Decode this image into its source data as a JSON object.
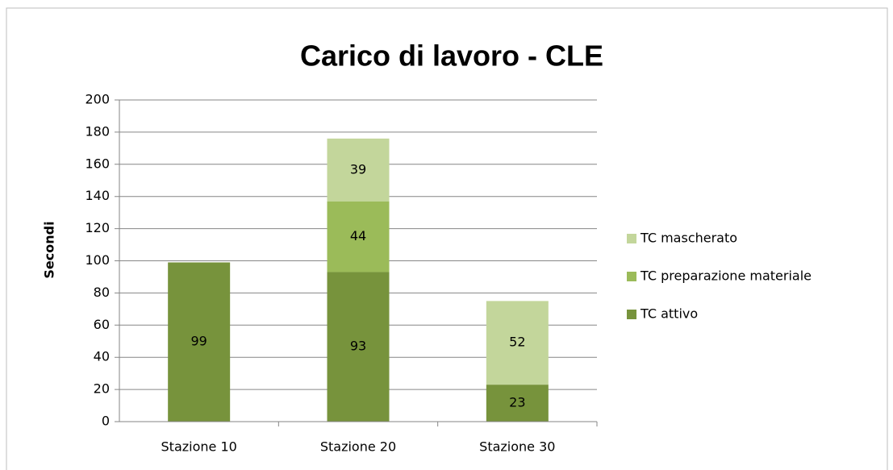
{
  "chart_data": {
    "type": "stacked_bar",
    "title": "Carico di lavoro - CLE",
    "y_label": "Secondi",
    "categories": [
      "Stazione 10",
      "Stazione 20",
      "Stazione 30"
    ],
    "series": [
      {
        "name": "TC attivo",
        "color": "#77933c",
        "values": [
          99,
          93,
          23
        ]
      },
      {
        "name": "TC preparazione materiale",
        "color": "#9bbb59",
        "values": [
          null,
          44,
          null
        ]
      },
      {
        "name": "TC mascherato",
        "color": "#c3d69b",
        "values": [
          null,
          39,
          52
        ]
      }
    ],
    "ylim": [
      0,
      200
    ],
    "yticks": [
      0,
      20,
      40,
      60,
      80,
      100,
      120,
      140,
      160,
      180,
      200
    ],
    "grid": true,
    "legend": "right"
  }
}
